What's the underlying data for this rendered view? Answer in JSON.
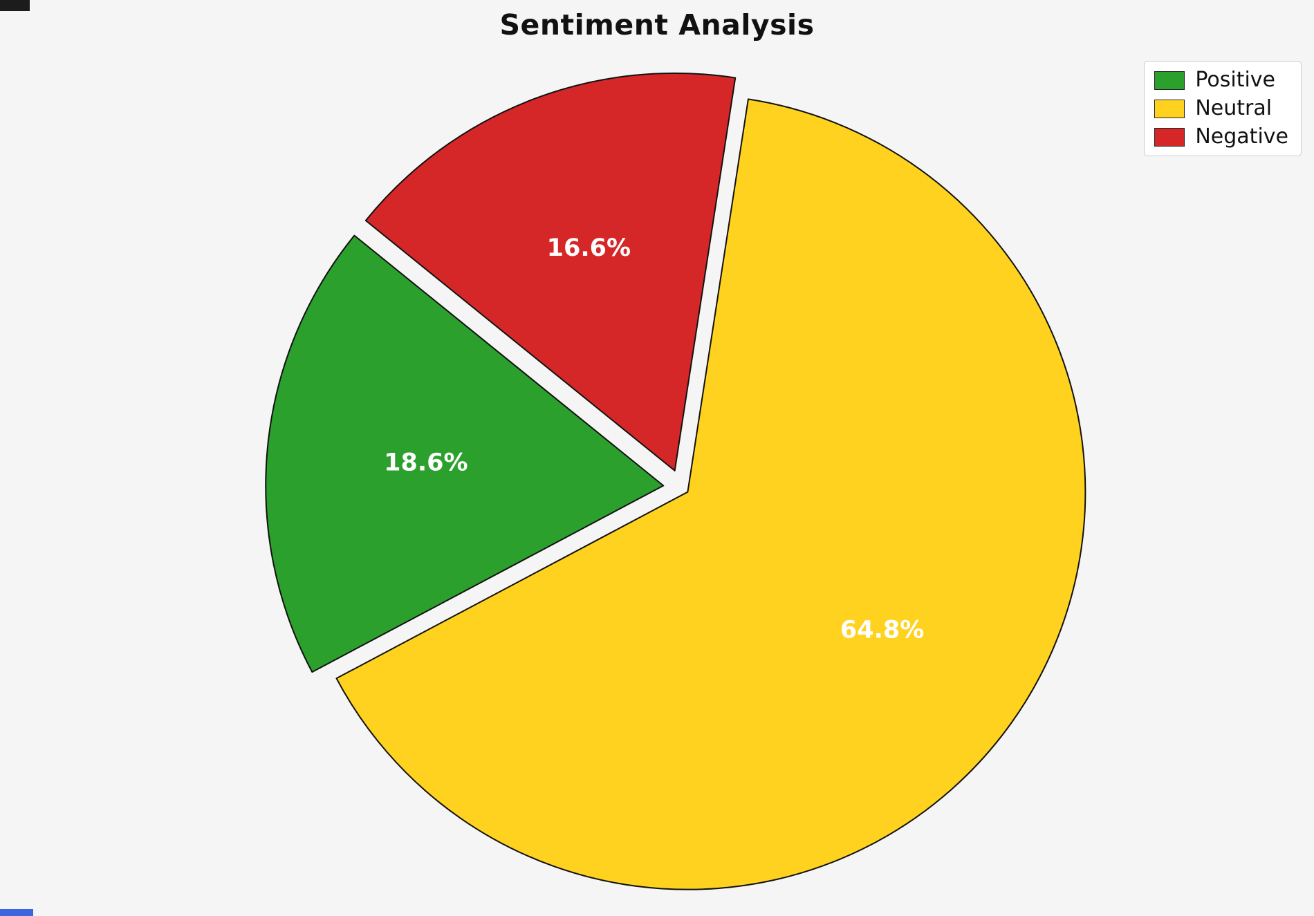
{
  "page": {
    "background": "#f5f5f5"
  },
  "chart_data": {
    "type": "pie",
    "title": "Sentiment Analysis",
    "labels": [
      "Positive",
      "Neutral",
      "Negative"
    ],
    "values": [
      18.6,
      64.8,
      16.6
    ],
    "display_labels": [
      "18.6%",
      "64.8%",
      "16.6%"
    ],
    "colors": [
      "#2ca02c",
      "#ffd21f",
      "#d62728"
    ],
    "edge_color": "#111111",
    "edge_width": 2,
    "label_color": "#ffffff",
    "start_angle": 141,
    "counterclockwise": true,
    "explode": [
      0.045,
      0.02,
      0.045
    ],
    "pct_distance": 0.6,
    "center": [
      985,
      705
    ],
    "radius": 575,
    "legend_position": "upper right",
    "background": "#f5f5f5"
  }
}
